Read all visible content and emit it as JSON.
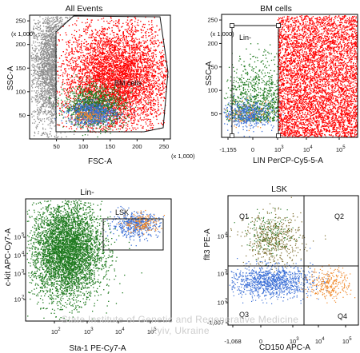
{
  "chart_data": [
    {
      "id": "p1",
      "type": "scatter",
      "title": "All Events",
      "xlabel": "FSC-A",
      "ylabel": "SSC-A",
      "x_multiplier": "(x 1,000)",
      "y_multiplier": "(x 1,000)",
      "xlim": [
        0,
        262
      ],
      "ylim": [
        0,
        262
      ],
      "x_ticks": [
        "50",
        "100",
        "150",
        "200",
        "250"
      ],
      "y_ticks": [
        "50",
        "100",
        "150",
        "200",
        "250"
      ],
      "gate_label": "BM cells",
      "series": [
        {
          "color": "#8c8c8c",
          "cx": 45,
          "cy": 150,
          "sx": 22,
          "sy": 65,
          "n": 1800
        },
        {
          "color": "#ff0000",
          "cx": 160,
          "cy": 130,
          "sx": 50,
          "sy": 58,
          "n": 5000
        },
        {
          "color": "#1f7a1f",
          "cx": 120,
          "cy": 70,
          "sx": 28,
          "sy": 22,
          "n": 1200
        },
        {
          "color": "#3b6fd6",
          "cx": 115,
          "cy": 55,
          "sx": 22,
          "sy": 12,
          "n": 700
        },
        {
          "color": "#f08a2c",
          "cx": 110,
          "cy": 50,
          "sx": 12,
          "sy": 7,
          "n": 120
        }
      ]
    },
    {
      "id": "p2",
      "type": "scatter",
      "title": "BM cells",
      "xlabel": "LIN PerCP-Cy5-5-A",
      "ylabel": "SSC-A",
      "y_multiplier": "(x 1,000)",
      "ylim": [
        0,
        262
      ],
      "x_ticks": [
        "-1,155",
        "0",
        "10",
        "10",
        "10"
      ],
      "x_tick_exps": [
        "",
        "",
        "3",
        "4",
        "5"
      ],
      "y_ticks": [
        "50",
        "100",
        "150",
        "200",
        "250"
      ],
      "gate_label": "Lin-",
      "series": [
        {
          "color": "#ff0000",
          "region": "lin_pos",
          "n": 5200
        },
        {
          "color": "#1f7a1f",
          "region": "lin_neg",
          "n": 900
        },
        {
          "color": "#3b6fd6",
          "region": "lin_neg_low",
          "n": 450
        },
        {
          "color": "#f08a2c",
          "region": "lin_neg_low",
          "n": 80
        }
      ]
    },
    {
      "id": "p3",
      "type": "scatter",
      "title": "Lin-",
      "xlabel": "Sta-1 PE-Cy7-A",
      "ylabel": "c-kit APC-Cy7-A",
      "x_ticks": [
        "10",
        "10",
        "10",
        "10"
      ],
      "x_tick_exps": [
        "2",
        "3",
        "4",
        "5"
      ],
      "y_ticks": [
        "10",
        "10",
        "10",
        "10"
      ],
      "y_tick_exps": [
        "5",
        "4",
        "3",
        "2"
      ],
      "gate_label": "LSK",
      "series": [
        {
          "color": "#1f7a1f",
          "cx": 0.28,
          "cy": 0.58,
          "sx": 0.12,
          "sy": 0.2,
          "n": 4500
        },
        {
          "color": "#3b6fd6",
          "cx": 0.75,
          "cy": 0.79,
          "sx": 0.08,
          "sy": 0.05,
          "n": 450
        },
        {
          "color": "#f08a2c",
          "cx": 0.8,
          "cy": 0.8,
          "sx": 0.06,
          "sy": 0.04,
          "n": 150
        }
      ]
    },
    {
      "id": "p4",
      "type": "scatter",
      "title": "LSK",
      "xlabel": "CD150 APC-A",
      "ylabel": "flt3 PE-A",
      "x_ticks": [
        "-1,068",
        "0",
        "10",
        "10",
        "10"
      ],
      "x_tick_exps": [
        "",
        "",
        "3",
        "4",
        "5"
      ],
      "y_ticks": [
        "10",
        "10",
        "10",
        "-1,007"
      ],
      "y_tick_exps": [
        "4",
        "3",
        "2",
        ""
      ],
      "quadrants": [
        "Q1",
        "Q2",
        "Q3",
        "Q4"
      ],
      "series": [
        {
          "color": "#7a6a2a",
          "cx": 0.35,
          "cy": 0.66,
          "sx": 0.11,
          "sy": 0.1,
          "n": 500
        },
        {
          "color": "#2e7d2e",
          "cx": 0.32,
          "cy": 0.7,
          "sx": 0.09,
          "sy": 0.08,
          "n": 150
        },
        {
          "color": "#3b6fd6",
          "cx": 0.32,
          "cy": 0.34,
          "sx": 0.16,
          "sy": 0.06,
          "n": 1100
        },
        {
          "color": "#f08a2c",
          "cx": 0.78,
          "cy": 0.32,
          "sx": 0.08,
          "sy": 0.06,
          "n": 280
        }
      ]
    }
  ],
  "watermark": {
    "line1": "State Institute of Genetic and Regenerative Medicine",
    "line2": "Kyiv, Ukraine"
  }
}
